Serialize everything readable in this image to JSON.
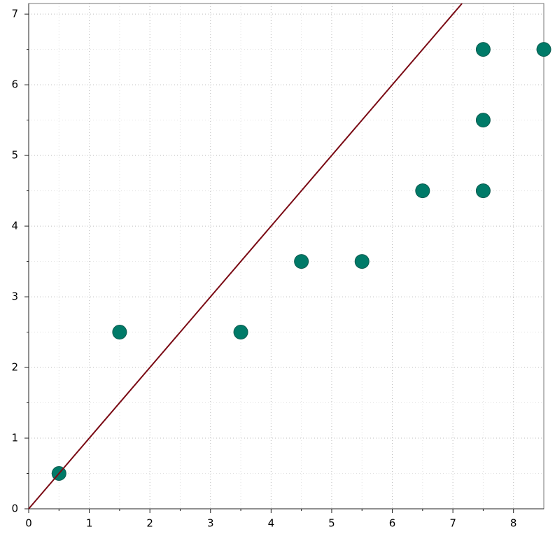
{
  "chart_data": {
    "type": "scatter",
    "series": [
      {
        "type": "scatter",
        "color": "#007a68",
        "x": [
          0.5,
          1.5,
          3.5,
          4.5,
          5.5,
          6.5,
          7.5,
          7.5,
          7.5,
          8.5
        ],
        "values": [
          0.5,
          2.5,
          2.5,
          3.5,
          3.5,
          4.5,
          4.5,
          5.5,
          6.5,
          6.5
        ]
      },
      {
        "type": "line",
        "color": "#7a0a14",
        "x": [
          0,
          7.15
        ],
        "values": [
          0,
          7.15
        ]
      }
    ],
    "xlim": [
      0,
      8.5
    ],
    "ylim": [
      0,
      7.15
    ],
    "xticks": [
      0,
      1,
      2,
      3,
      4,
      5,
      6,
      7,
      8
    ],
    "yticks": [
      0,
      1,
      2,
      3,
      4,
      5,
      6,
      7
    ],
    "minor_xticks": [
      0.5,
      1.5,
      2.5,
      3.5,
      4.5,
      5.5,
      6.5,
      7.5
    ],
    "minor_yticks": [
      0.5,
      1.5,
      2.5,
      3.5,
      4.5,
      5.5,
      6.5
    ],
    "grid": true
  }
}
